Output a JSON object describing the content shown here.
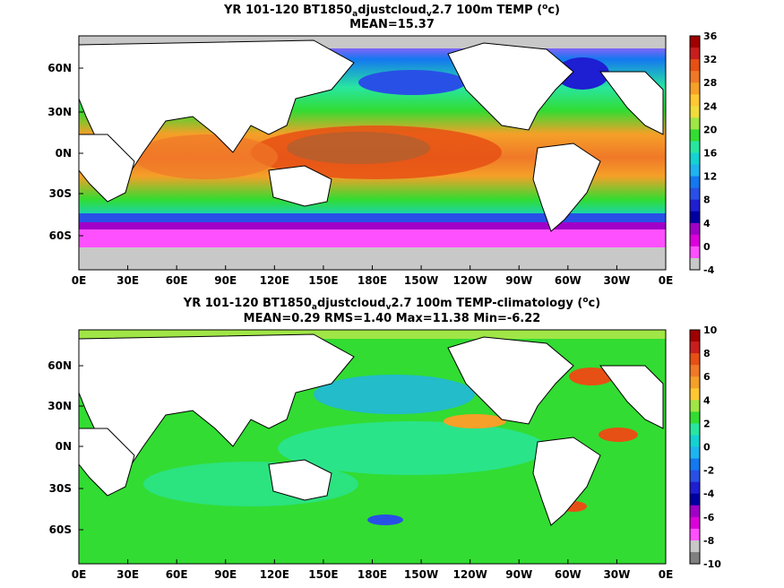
{
  "panels": [
    {
      "title_pre": "YR 101-120 BT1850",
      "title_sub1": "a",
      "title_mid": "djustcloud",
      "title_sub2": "v",
      "title_post": "2.7 100m TEMP (",
      "title_sup": "o",
      "title_end": "c)",
      "stats": "MEAN=15.37",
      "lat_labels": [
        "60N",
        "30N",
        "0N",
        "30S",
        "60S"
      ],
      "lon_labels": [
        "0E",
        "30E",
        "60E",
        "90E",
        "120E",
        "150E",
        "180E",
        "150W",
        "120W",
        "90W",
        "60W",
        "30W",
        "0E"
      ],
      "colorbar_labels": [
        "36",
        "32",
        "28",
        "24",
        "20",
        "16",
        "12",
        "8",
        "4",
        "0",
        "-4"
      ],
      "colorbar_colors": [
        "#a00000",
        "#c81e1e",
        "#e65014",
        "#f07828",
        "#f5a028",
        "#ffc832",
        "#f0dc3c",
        "#a0e646",
        "#32dc32",
        "#28e6a0",
        "#14d2d2",
        "#1eb4f0",
        "#1478f0",
        "#2850e6",
        "#1e1ed2",
        "#0000a0",
        "#a000c8",
        "#dc00dc",
        "#ff50ff",
        "#c8c8c8"
      ]
    },
    {
      "title_pre": "YR 101-120 BT1850",
      "title_sub1": "a",
      "title_mid": "djustcloud",
      "title_sub2": "v",
      "title_post": "2.7 100m TEMP-climatology (",
      "title_sup": "o",
      "title_end": "c)",
      "stats": "MEAN=0.29   RMS=1.40   Max=11.38   Min=-6.22",
      "lat_labels": [
        "60N",
        "30N",
        "0N",
        "30S",
        "60S"
      ],
      "lon_labels": [
        "0E",
        "30E",
        "60E",
        "90E",
        "120E",
        "150E",
        "180E",
        "150W",
        "120W",
        "90W",
        "60W",
        "30W",
        "0E"
      ],
      "colorbar_labels": [
        "10",
        "8",
        "6",
        "4",
        "2",
        "0",
        "-2",
        "-4",
        "-6",
        "-8",
        "-10"
      ],
      "colorbar_colors": [
        "#a00000",
        "#c81e1e",
        "#e65014",
        "#f07828",
        "#f5a028",
        "#ffc832",
        "#a0e646",
        "#32dc32",
        "#28e6a0",
        "#14d2d2",
        "#1eb4f0",
        "#1478f0",
        "#2850e6",
        "#1e1ed2",
        "#0000a0",
        "#a000c8",
        "#dc00dc",
        "#ff50ff",
        "#c8c8c8",
        "#808080"
      ]
    }
  ]
}
